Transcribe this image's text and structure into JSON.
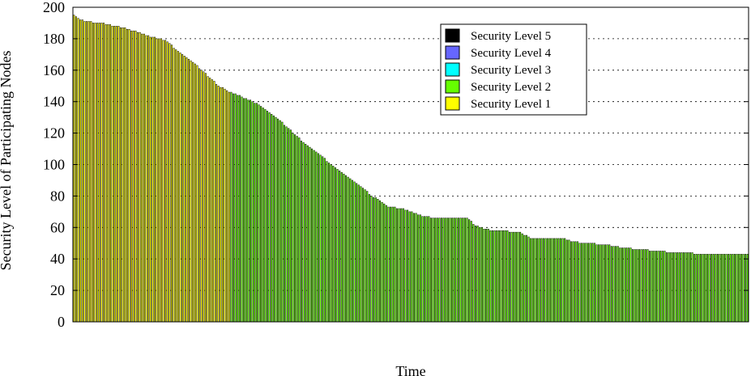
{
  "chart_data": {
    "type": "bar",
    "xlabel": "Time",
    "ylabel": "Security Level of Participating Nodes",
    "ylim": [
      0,
      200
    ],
    "yticks": [
      0,
      20,
      40,
      60,
      80,
      100,
      120,
      140,
      160,
      180,
      200
    ],
    "grid": "horizontal dotted",
    "legend_placement": "top-right",
    "legend": [
      {
        "name": "Security Level 5",
        "color": "#000000"
      },
      {
        "name": "Security Level 4",
        "color": "#6666ff"
      },
      {
        "name": "Security Level 3",
        "color": "#00ffff"
      },
      {
        "name": "Security Level 2",
        "color": "#66ff00"
      },
      {
        "name": "Security Level 1",
        "color": "#ffff00"
      }
    ],
    "categories_count": 318,
    "keypoints": [
      [
        0,
        195
      ],
      [
        3,
        192
      ],
      [
        5,
        191
      ],
      [
        12,
        190
      ],
      [
        16,
        189
      ],
      [
        23,
        187
      ],
      [
        28,
        185
      ],
      [
        32,
        183
      ],
      [
        36,
        181
      ],
      [
        40,
        180
      ],
      [
        44,
        178
      ],
      [
        48,
        173
      ],
      [
        52,
        169
      ],
      [
        56,
        165
      ],
      [
        60,
        160
      ],
      [
        64,
        155
      ],
      [
        68,
        150
      ],
      [
        72,
        147
      ],
      [
        75,
        145
      ],
      [
        79,
        143
      ],
      [
        84,
        140
      ],
      [
        88,
        137
      ],
      [
        92,
        133
      ],
      [
        96,
        129
      ],
      [
        100,
        124
      ],
      [
        104,
        119
      ],
      [
        108,
        114
      ],
      [
        112,
        110
      ],
      [
        116,
        106
      ],
      [
        120,
        101
      ],
      [
        124,
        97
      ],
      [
        128,
        93
      ],
      [
        132,
        89
      ],
      [
        136,
        85
      ],
      [
        140,
        80
      ],
      [
        144,
        77
      ],
      [
        148,
        73
      ],
      [
        155,
        72
      ],
      [
        160,
        69
      ],
      [
        165,
        67
      ],
      [
        170,
        66
      ],
      [
        185,
        66
      ],
      [
        189,
        61
      ],
      [
        193,
        59
      ],
      [
        198,
        58
      ],
      [
        210,
        57
      ],
      [
        215,
        53
      ],
      [
        230,
        53
      ],
      [
        234,
        51
      ],
      [
        240,
        50
      ],
      [
        250,
        49
      ],
      [
        258,
        47
      ],
      [
        266,
        46
      ],
      [
        274,
        45
      ],
      [
        282,
        44
      ],
      [
        300,
        43
      ],
      [
        317,
        43
      ]
    ],
    "series": [
      {
        "name": "Security Level 1",
        "color": "#ffff00",
        "region": "early period, Time indices 0–73 (approx.)"
      },
      {
        "name": "Security Level 2",
        "color": "#66ff00",
        "region": "remainder of the time range"
      },
      {
        "name": "Security Level 5",
        "color": "#000000",
        "region": "thin bar outlines"
      }
    ]
  }
}
